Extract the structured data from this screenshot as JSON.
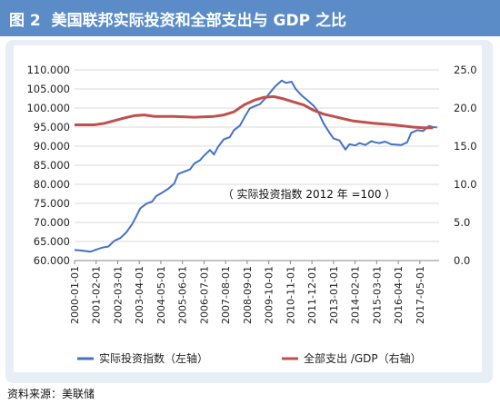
{
  "header": {
    "figure_label": "图 2",
    "title": "美国联邦实际投资和全部支出与 GDP 之比",
    "bg_color": "#5b8cc8"
  },
  "chart_data": {
    "type": "line",
    "annotation": "（ 实际投资指数 2012 年 =100 ）",
    "y_left": {
      "range": [
        60,
        110
      ],
      "ticks": [
        "60.000",
        "65.000",
        "70.000",
        "75.000",
        "80.000",
        "85.000",
        "90.000",
        "95.000",
        "100.000",
        "105.000",
        "110.000"
      ]
    },
    "y_right": {
      "range": [
        0,
        25
      ],
      "ticks": [
        "0.0",
        "5.0",
        "10.0",
        "15.0",
        "20.0",
        "25.0"
      ]
    },
    "x_ticks": [
      "2000-01-01",
      "2001-02-01",
      "2002-03-01",
      "2003-04-01",
      "2004-05-01",
      "2005-06-01",
      "2006-07-01",
      "2007-08-01",
      "2008-09-01",
      "2009-10-01",
      "2010-11-01",
      "2011-12-01",
      "2013-01-01",
      "2014-02-01",
      "2015-03-01",
      "2016-04-01",
      "2017-05-01"
    ],
    "x_range": [
      2000.0,
      2018.3
    ],
    "grid": true,
    "legend_position": "bottom",
    "series": [
      {
        "name": "实际投资指数（左轴）",
        "axis": "left",
        "color": "#4472c4",
        "points": [
          [
            2000.0,
            62.8
          ],
          [
            2000.4,
            62.6
          ],
          [
            2000.8,
            62.3
          ],
          [
            2001.1,
            62.9
          ],
          [
            2001.4,
            63.4
          ],
          [
            2001.7,
            63.7
          ],
          [
            2002.0,
            65.2
          ],
          [
            2002.3,
            65.9
          ],
          [
            2002.6,
            67.4
          ],
          [
            2002.9,
            69.6
          ],
          [
            2003.1,
            71.6
          ],
          [
            2003.3,
            73.7
          ],
          [
            2003.6,
            74.9
          ],
          [
            2003.9,
            75.5
          ],
          [
            2004.1,
            76.9
          ],
          [
            2004.4,
            77.8
          ],
          [
            2004.7,
            78.8
          ],
          [
            2005.0,
            80.2
          ],
          [
            2005.2,
            82.7
          ],
          [
            2005.5,
            83.3
          ],
          [
            2005.8,
            83.9
          ],
          [
            2006.0,
            85.4
          ],
          [
            2006.3,
            86.3
          ],
          [
            2006.5,
            87.5
          ],
          [
            2006.8,
            89.0
          ],
          [
            2007.0,
            87.8
          ],
          [
            2007.2,
            89.8
          ],
          [
            2007.5,
            91.8
          ],
          [
            2007.8,
            92.4
          ],
          [
            2008.0,
            94.2
          ],
          [
            2008.3,
            95.4
          ],
          [
            2008.6,
            98.2
          ],
          [
            2008.8,
            99.9
          ],
          [
            2009.0,
            100.4
          ],
          [
            2009.3,
            101.0
          ],
          [
            2009.6,
            102.7
          ],
          [
            2009.9,
            104.6
          ],
          [
            2010.1,
            105.8
          ],
          [
            2010.4,
            107.2
          ],
          [
            2010.6,
            106.6
          ],
          [
            2010.9,
            106.9
          ],
          [
            2011.1,
            105.0
          ],
          [
            2011.4,
            103.3
          ],
          [
            2011.7,
            102.0
          ],
          [
            2012.0,
            100.6
          ],
          [
            2012.2,
            99.3
          ],
          [
            2012.5,
            96.0
          ],
          [
            2012.8,
            93.5
          ],
          [
            2013.0,
            92.0
          ],
          [
            2013.3,
            91.5
          ],
          [
            2013.6,
            89.1
          ],
          [
            2013.8,
            90.5
          ],
          [
            2014.1,
            90.2
          ],
          [
            2014.3,
            90.8
          ],
          [
            2014.6,
            90.3
          ],
          [
            2014.9,
            91.3
          ],
          [
            2015.1,
            91.0
          ],
          [
            2015.3,
            90.8
          ],
          [
            2015.6,
            91.2
          ],
          [
            2015.9,
            90.5
          ],
          [
            2016.1,
            90.4
          ],
          [
            2016.4,
            90.3
          ],
          [
            2016.7,
            91.0
          ],
          [
            2016.9,
            93.5
          ],
          [
            2017.2,
            94.2
          ],
          [
            2017.5,
            94.0
          ],
          [
            2017.8,
            95.3
          ],
          [
            2018.0,
            95.0
          ],
          [
            2018.2,
            94.9
          ]
        ]
      },
      {
        "name": "全部支出 /GDP（右轴）",
        "axis": "right",
        "color": "#c0504d",
        "points": [
          [
            2000.0,
            17.8
          ],
          [
            2001.0,
            17.8
          ],
          [
            2001.5,
            18.0
          ],
          [
            2002.5,
            18.7
          ],
          [
            2003.0,
            19.0
          ],
          [
            2003.5,
            19.1
          ],
          [
            2004.0,
            18.9
          ],
          [
            2005.0,
            18.9
          ],
          [
            2006.0,
            18.8
          ],
          [
            2007.0,
            18.9
          ],
          [
            2007.5,
            19.1
          ],
          [
            2008.0,
            19.5
          ],
          [
            2008.5,
            20.4
          ],
          [
            2009.0,
            21.0
          ],
          [
            2009.5,
            21.4
          ],
          [
            2010.0,
            21.5
          ],
          [
            2010.5,
            21.2
          ],
          [
            2011.0,
            20.8
          ],
          [
            2011.5,
            20.4
          ],
          [
            2012.0,
            19.7
          ],
          [
            2012.5,
            19.2
          ],
          [
            2013.0,
            18.9
          ],
          [
            2013.5,
            18.6
          ],
          [
            2014.0,
            18.3
          ],
          [
            2015.0,
            18.0
          ],
          [
            2016.0,
            17.8
          ],
          [
            2017.0,
            17.5
          ],
          [
            2017.5,
            17.4
          ],
          [
            2018.0,
            17.4
          ]
        ]
      }
    ]
  },
  "source": "资料来源：美联储"
}
